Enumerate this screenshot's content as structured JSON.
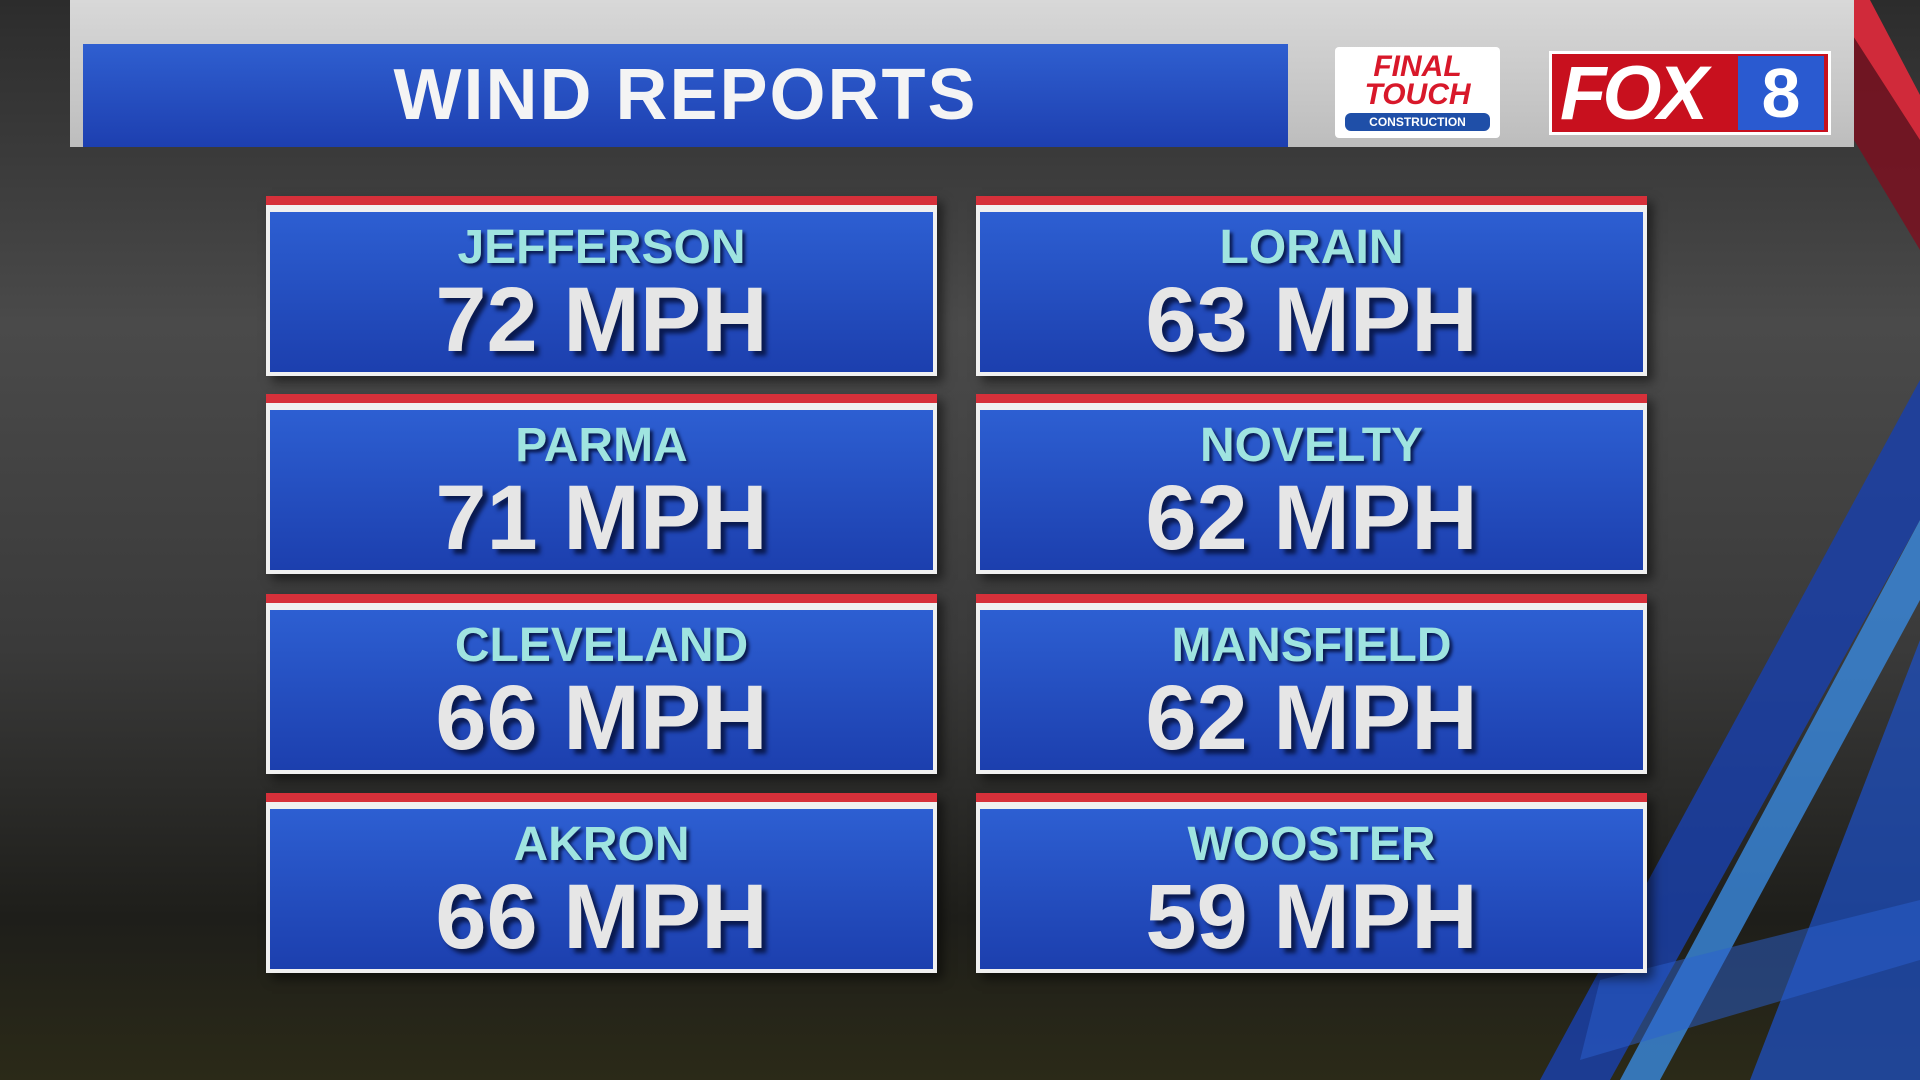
{
  "header": {
    "title": "WIND REPORTS"
  },
  "sponsor": {
    "line1": "FINAL",
    "line2": "TOUCH",
    "line3": "CONSTRUCTION"
  },
  "station": {
    "name": "FOX",
    "number": "8"
  },
  "reports": [
    {
      "location": "JEFFERSON",
      "speed": "72 MPH"
    },
    {
      "location": "LORAIN",
      "speed": "63 MPH"
    },
    {
      "location": "PARMA",
      "speed": "71 MPH"
    },
    {
      "location": "NOVELTY",
      "speed": "62 MPH"
    },
    {
      "location": "CLEVELAND",
      "speed": "66 MPH"
    },
    {
      "location": "MANSFIELD",
      "speed": "62 MPH"
    },
    {
      "location": "AKRON",
      "speed": "66 MPH"
    },
    {
      "location": "WOOSTER",
      "speed": "59 MPH"
    }
  ]
}
